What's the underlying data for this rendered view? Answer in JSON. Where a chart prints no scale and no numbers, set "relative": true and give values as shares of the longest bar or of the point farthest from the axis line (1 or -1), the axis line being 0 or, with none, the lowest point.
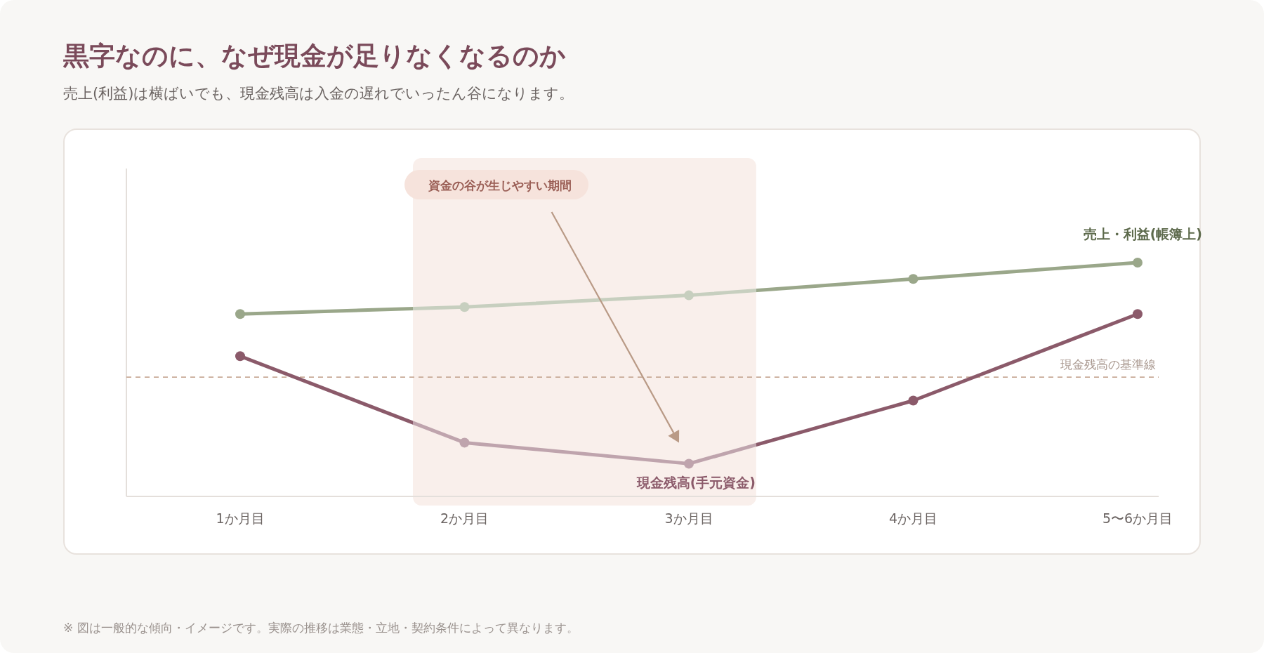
{
  "chart_data": {
    "type": "line",
    "title": "黒字なのに、なぜ現金が足りなくなるのか",
    "subtitle": "売上(利益)は横ばいでも、現金残高は入金の遅れでいったん谷になります。",
    "categories": [
      "1か月目",
      "2か月目",
      "3か月目",
      "4か月目",
      "5〜6か月目"
    ],
    "relative": true,
    "series": [
      {
        "name": "売上・利益(帳簿上)",
        "color": "#9aa78a",
        "values": [
          0.78,
          0.81,
          0.86,
          0.93,
          1
        ]
      },
      {
        "name": "現金残高(手元資金)",
        "color": "#8b5a6a",
        "values": [
          0.6,
          0.23,
          0.14,
          0.41,
          0.78
        ]
      }
    ],
    "ref_lines": [
      {
        "axis": "y",
        "value": 0.51,
        "label": "現金残高の基準線",
        "color": "#c9ab98",
        "line_style": "dashed"
      }
    ],
    "bands": [
      {
        "axis": "x",
        "from": "2か月目",
        "to": "3か月目",
        "label": "資金の谷が生じやすい期間",
        "color": "#f9efeb"
      }
    ],
    "marker": "circle",
    "annotations": [
      "※ 図は一般的な傾向・イメージです。実際の推移は業態・立地・契約条件によって異なります。"
    ]
  }
}
